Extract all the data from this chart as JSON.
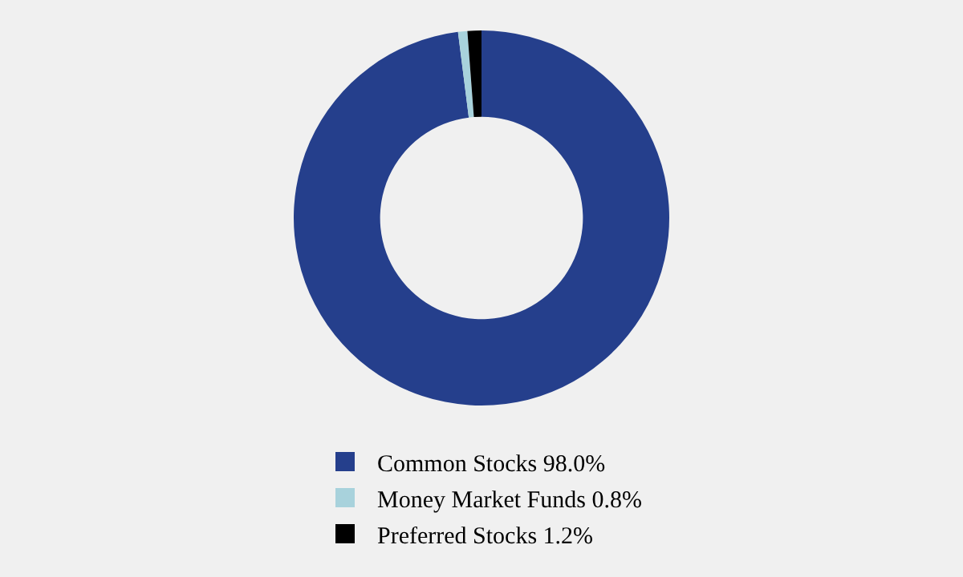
{
  "chart_data": {
    "type": "donut",
    "categories": [
      "Common Stocks 98.0%",
      "Money Market Funds 0.8%",
      "Preferred Stocks 1.2%"
    ],
    "values": [
      98.0,
      0.8,
      1.2
    ],
    "colors": [
      "#253f8c",
      "#a8d2dc",
      "#000000"
    ],
    "legend": "bottom"
  }
}
